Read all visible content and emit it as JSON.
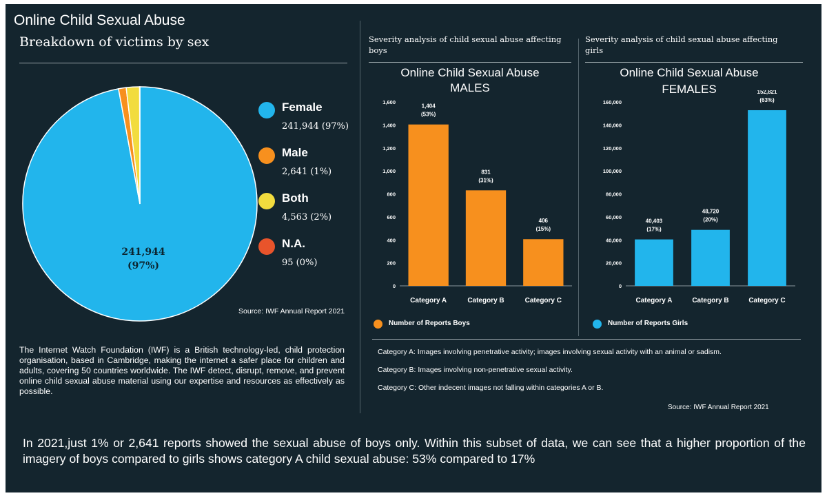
{
  "header": {
    "title": "Online Child Sexual Abuse",
    "subtitle": "Breakdown of victims by sex"
  },
  "colors": {
    "female": "#22b5ec",
    "male": "#f7901e",
    "both": "#f2dc3e",
    "na": "#e8542b",
    "boys_bar": "#f7901e",
    "girls_bar": "#22b5ec"
  },
  "pie": {
    "center_label_value": "241,944",
    "center_label_pct": "(97%)",
    "source": "Source: IWF Annual Report 2021",
    "legend": [
      {
        "name": "Female",
        "value": "241,944 (97%)",
        "color": "#22b5ec"
      },
      {
        "name": "Male",
        "value": "2,641 (1%)",
        "color": "#f7901e"
      },
      {
        "name": "Both",
        "value": "4,563 (2%)",
        "color": "#f2dc3e"
      },
      {
        "name": "N.A.",
        "value": "95 (0%)",
        "color": "#e8542b"
      }
    ]
  },
  "boys_panel": {
    "heading_line1": "Severity analysis of child sexual abuse affecting",
    "heading_line2": "boys",
    "chart_title_line1": "Online Child Sexual Abuse",
    "chart_title_line2": "MALES",
    "legend": "Number of Reports Boys"
  },
  "girls_panel": {
    "heading_line1": "Severity analysis of child sexual abuse affecting",
    "heading_line2": "girls",
    "chart_title_line1": "Online Child Sexual Abuse",
    "chart_title_line2": "FEMALES",
    "legend": "Number of Reports Girls"
  },
  "about": "The Internet Watch Foundation (IWF) is a British technology-led, child protection organisation, based in Cambridge, making the internet a safer place for children and adults, covering 50 countries worldwide. The IWF detect, disrupt, remove, and prevent online child sexual abuse material using our expertise and resources as effectively as possible.",
  "categories_notes": {
    "a": "Category A: Images involving penetrative activity; images involving sexual activity with an animal or sadism.",
    "b": "Category B: Images involving non-penetrative sexual activity.",
    "c": "Category C: Other indecent images not falling within categories A or B.",
    "source": "Source: IWF Annual Report 2021"
  },
  "footer": "In 2021,just 1% or 2,641 reports showed the sexual abuse of boys only. Within this subset of data, we can see that a higher proportion of the imagery of boys compared to girls shows category A child sexual abuse: 53% compared to 17%",
  "chart_data": [
    {
      "type": "pie",
      "title": "Breakdown of victims by sex",
      "categories": [
        "Female",
        "Male",
        "Both",
        "N.A."
      ],
      "values": [
        241944,
        2641,
        4563,
        95
      ],
      "percent_labels": [
        "97%",
        "1%",
        "2%",
        "0%"
      ]
    },
    {
      "type": "bar",
      "title": "Online Child Sexual Abuse MALES",
      "categories": [
        "Category A",
        "Category B",
        "Category C"
      ],
      "values": [
        1404,
        831,
        406
      ],
      "data_labels": [
        "1,404",
        "831",
        "406"
      ],
      "pct_labels": [
        "(53%)",
        "(31%)",
        "(15%)"
      ],
      "legend": "Number of Reports Boys",
      "ylim": [
        0,
        1600
      ],
      "yticks": [
        0,
        200,
        400,
        600,
        800,
        1000,
        1200,
        1400,
        1600
      ],
      "ytick_labels": [
        "0",
        "200",
        "400",
        "600",
        "800",
        "1,000",
        "1,200",
        "1,400",
        "1,600"
      ]
    },
    {
      "type": "bar",
      "title": "Online Child Sexual Abuse FEMALES",
      "categories": [
        "Category A",
        "Category B",
        "Category C"
      ],
      "values": [
        40403,
        48720,
        152821
      ],
      "data_labels": [
        "40,403",
        "48,720",
        "152,821"
      ],
      "pct_labels": [
        "(17%)",
        "(20%)",
        "(63%)"
      ],
      "legend": "Number of Reports Girls",
      "ylim": [
        0,
        160000
      ],
      "yticks": [
        0,
        20000,
        40000,
        60000,
        80000,
        100000,
        120000,
        140000,
        160000
      ],
      "ytick_labels": [
        "0",
        "20,000",
        "40,000",
        "60,000",
        "80,000",
        "100,000",
        "120,000",
        "140,000",
        "160,000"
      ]
    }
  ]
}
